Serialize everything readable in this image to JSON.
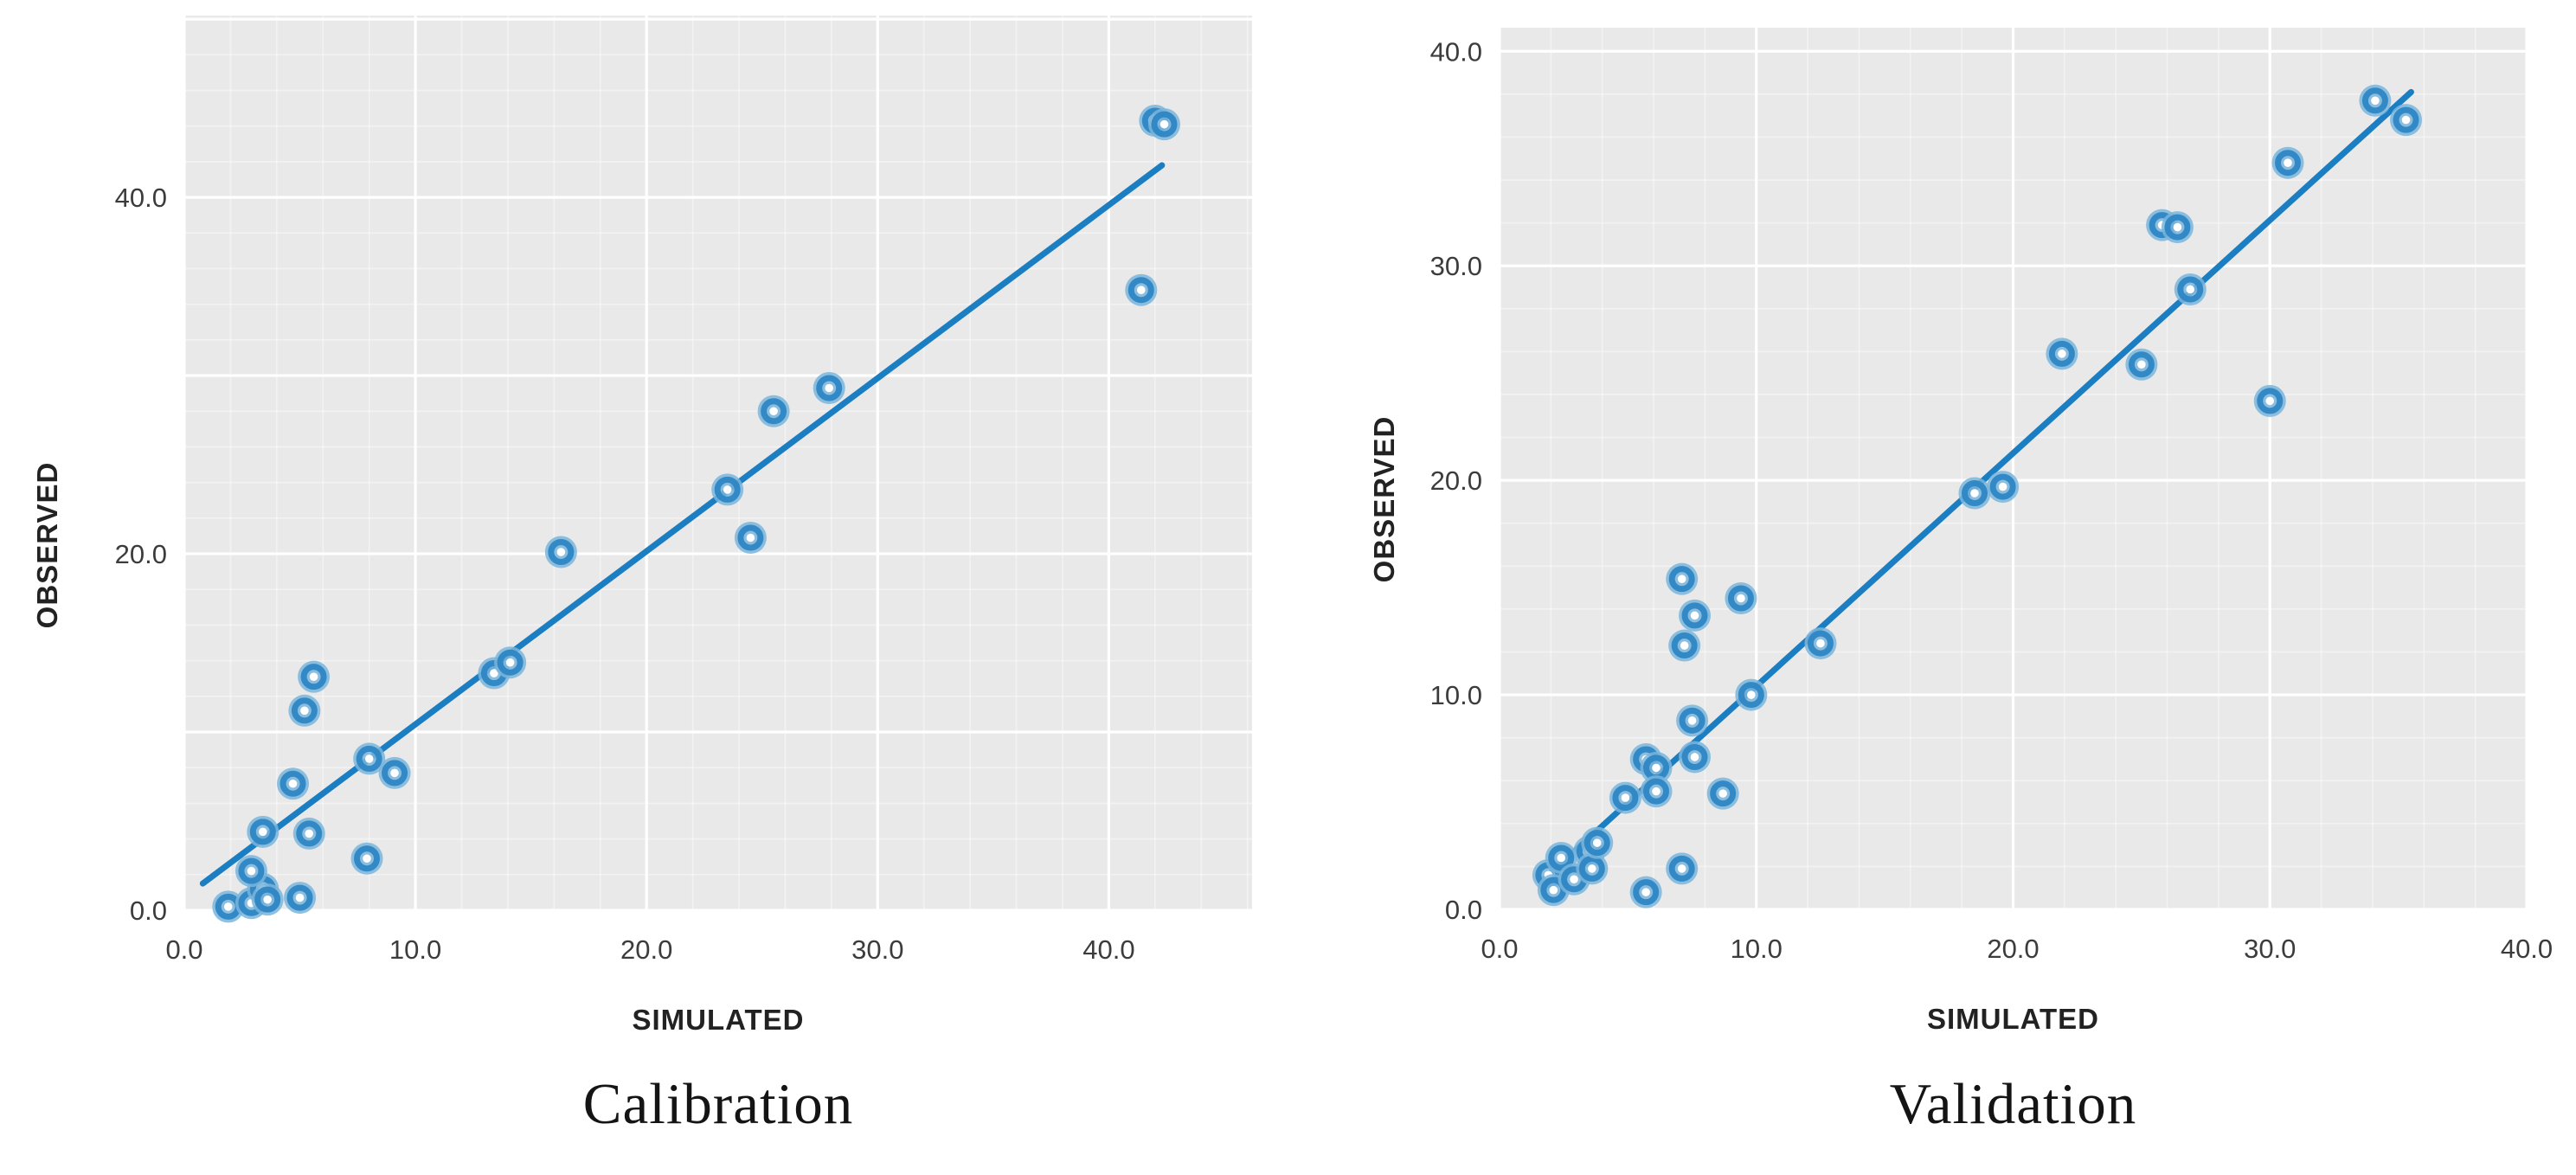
{
  "styles": {
    "page_bg": "#ffffff",
    "plot_bg": "#e9e9e9",
    "grid_major": "#ffffff",
    "grid_minor": "#ffffff",
    "marker_halo": "#79b5dc",
    "marker_ring": "#2e86c3",
    "marker_center": "#ffffff",
    "trend": "#1b7ec2",
    "tick_color": "#3c3c3c",
    "axis_title_color": "#222222",
    "caption_color": "#141414"
  },
  "chart_data": [
    {
      "type": "scatter",
      "caption": "Calibration",
      "xlabel": "SIMULATED",
      "ylabel": "OBSERVED",
      "marker": "open-circle",
      "grid": "on",
      "legend": "none",
      "xlim": [
        0,
        46.2
      ],
      "ylim": [
        0,
        50.2
      ],
      "grid_major_step": 10,
      "grid_minor_step": 2,
      "x_tick_values": [
        0,
        10,
        20,
        30,
        40
      ],
      "x_tick_labels": [
        "0.0",
        "10.0",
        "20.0",
        "30.0",
        "40.0"
      ],
      "y_tick_values": [
        0,
        20,
        40
      ],
      "y_tick_labels": [
        "0.0",
        "20.0",
        "40.0"
      ],
      "points": [
        [
          1.9,
          0.2
        ],
        [
          2.9,
          0.4
        ],
        [
          3.4,
          1.2
        ],
        [
          3.6,
          0.6
        ],
        [
          5.0,
          0.7
        ],
        [
          2.9,
          2.2
        ],
        [
          7.9,
          2.9
        ],
        [
          3.4,
          4.4
        ],
        [
          5.4,
          4.3
        ],
        [
          4.7,
          7.1
        ],
        [
          8.0,
          8.5
        ],
        [
          9.1,
          7.7
        ],
        [
          5.2,
          11.2
        ],
        [
          5.6,
          13.1
        ],
        [
          13.4,
          13.3
        ],
        [
          14.1,
          13.9
        ],
        [
          16.3,
          20.1
        ],
        [
          23.5,
          23.6
        ],
        [
          24.5,
          20.9
        ],
        [
          25.5,
          28.0
        ],
        [
          27.9,
          29.3
        ],
        [
          41.4,
          34.8
        ],
        [
          42.0,
          44.3
        ],
        [
          42.4,
          44.1
        ]
      ],
      "trendline": {
        "x1": 0.8,
        "y1": 1.5,
        "x2": 42.3,
        "y2": 41.8
      }
    },
    {
      "type": "scatter",
      "caption": "Validation",
      "xlabel": "SIMULATED",
      "ylabel": "OBSERVED",
      "marker": "open-circle",
      "grid": "on",
      "legend": "none",
      "xlim": [
        0,
        40.0
      ],
      "ylim": [
        0,
        41.1
      ],
      "grid_major_step": 10,
      "grid_minor_step": 2,
      "x_tick_values": [
        0,
        10,
        20,
        30,
        40
      ],
      "x_tick_labels": [
        "0.0",
        "10.0",
        "20.0",
        "30.0",
        "40.0"
      ],
      "y_tick_values": [
        0,
        10,
        20,
        30,
        40
      ],
      "y_tick_labels": [
        "0.0",
        "10.0",
        "20.0",
        "30.0",
        "40.0"
      ],
      "points": [
        [
          1.9,
          1.6
        ],
        [
          2.1,
          0.9
        ],
        [
          2.4,
          2.4
        ],
        [
          2.9,
          1.4
        ],
        [
          3.5,
          2.7
        ],
        [
          3.6,
          1.9
        ],
        [
          3.8,
          3.1
        ],
        [
          5.7,
          0.8
        ],
        [
          4.9,
          5.2
        ],
        [
          5.7,
          7.0
        ],
        [
          6.1,
          6.6
        ],
        [
          6.1,
          5.5
        ],
        [
          7.5,
          8.8
        ],
        [
          7.6,
          7.1
        ],
        [
          8.7,
          5.4
        ],
        [
          7.1,
          1.9
        ],
        [
          9.8,
          10.0
        ],
        [
          7.1,
          15.4
        ],
        [
          9.4,
          14.5
        ],
        [
          7.6,
          13.7
        ],
        [
          7.2,
          12.3
        ],
        [
          12.5,
          12.4
        ],
        [
          18.5,
          19.4
        ],
        [
          19.6,
          19.7
        ],
        [
          21.9,
          25.9
        ],
        [
          25.0,
          25.4
        ],
        [
          25.8,
          31.9
        ],
        [
          26.4,
          31.8
        ],
        [
          26.9,
          28.9
        ],
        [
          30.0,
          23.7
        ],
        [
          30.7,
          34.8
        ],
        [
          34.1,
          37.7
        ],
        [
          35.3,
          36.8
        ]
      ],
      "trendline": {
        "x1": 1.8,
        "y1": 1.5,
        "x2": 35.5,
        "y2": 38.1
      }
    }
  ]
}
